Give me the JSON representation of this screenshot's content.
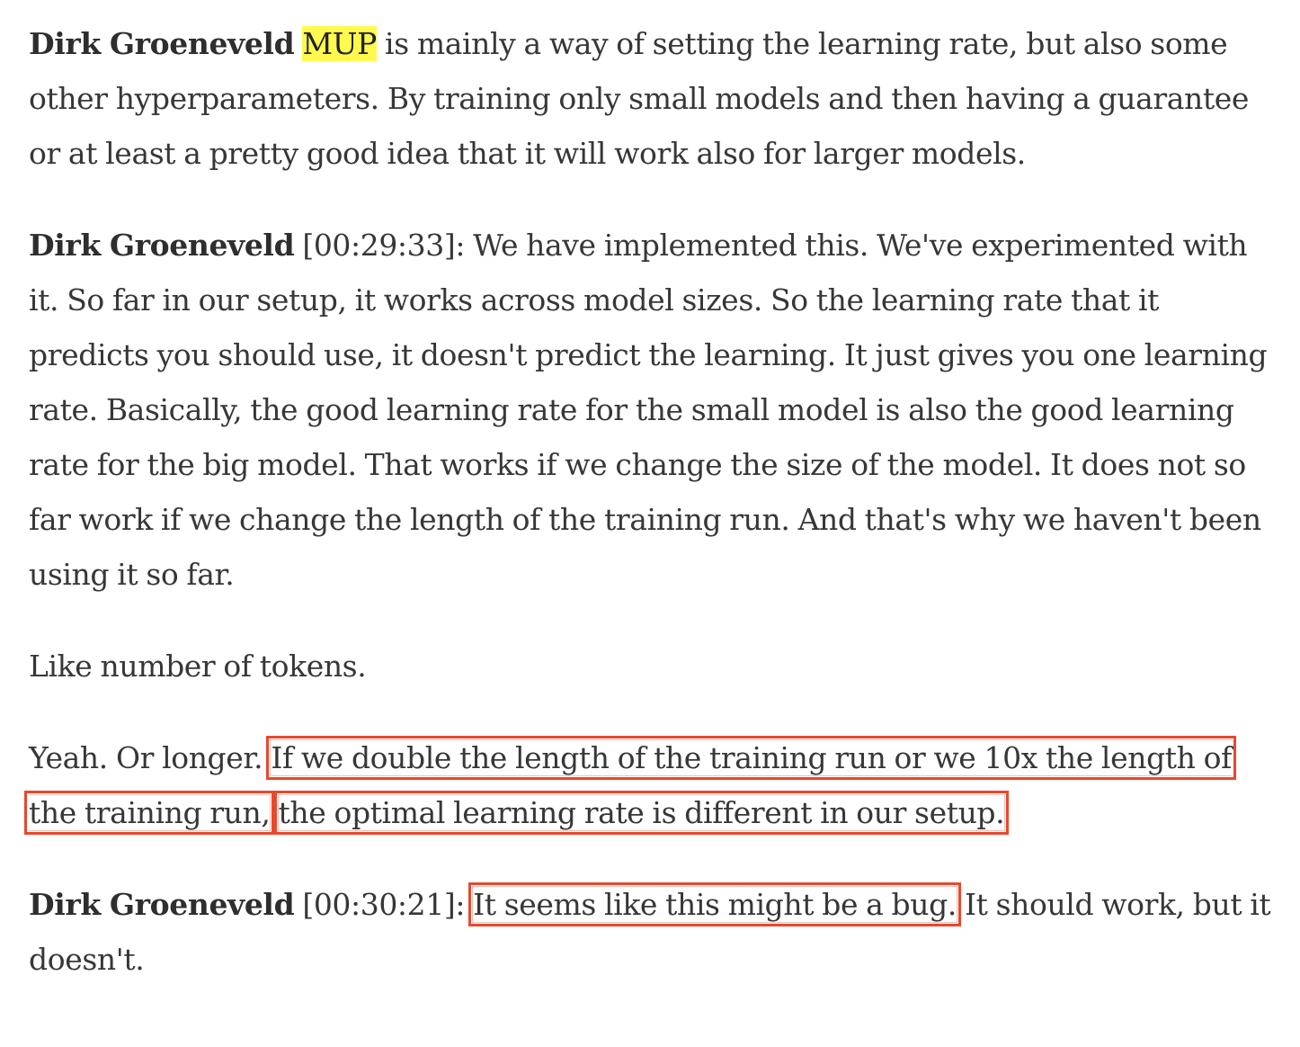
{
  "paragraphs": [
    {
      "speaker": "Dirk Groeneveld",
      "highlight": "MUP",
      "text": " is mainly a way of setting the learning rate, but also some other hyperparameters. By training only small models and then having a guarantee or at least a pretty good idea that it will work also for larger models."
    },
    {
      "speaker": "Dirk Groeneveld",
      "timestamp": " [00:29:33]",
      "text": ": We have implemented this. We've experimented with it. So far in our setup, it works across model sizes. So the learning rate that it predicts you should use, it doesn't predict the learning. It just gives you one learning rate. Basically, the good learning rate for the small model is also the good learning rate for the big model. That works if we change the size of the model. It does not so far work if we change the length of the training run. And that's why we haven't been using it so far."
    },
    {
      "text": "Like number of tokens."
    },
    {
      "lead": "Yeah. Or longer. ",
      "boxed_1": "If we double the length of the training run or we 10x the length of the training run,",
      "sep": " ",
      "boxed_2": "the optimal learning rate is different in our setup."
    },
    {
      "speaker": "Dirk Groeneveld",
      "timestamp": " [00:30:21]",
      "colon": ": ",
      "boxed": "It seems like this might be a bug.",
      "text": " It should work, but it doesn't."
    }
  ],
  "annotation_color": "#e8482e",
  "highlight_color": "#fff94f"
}
